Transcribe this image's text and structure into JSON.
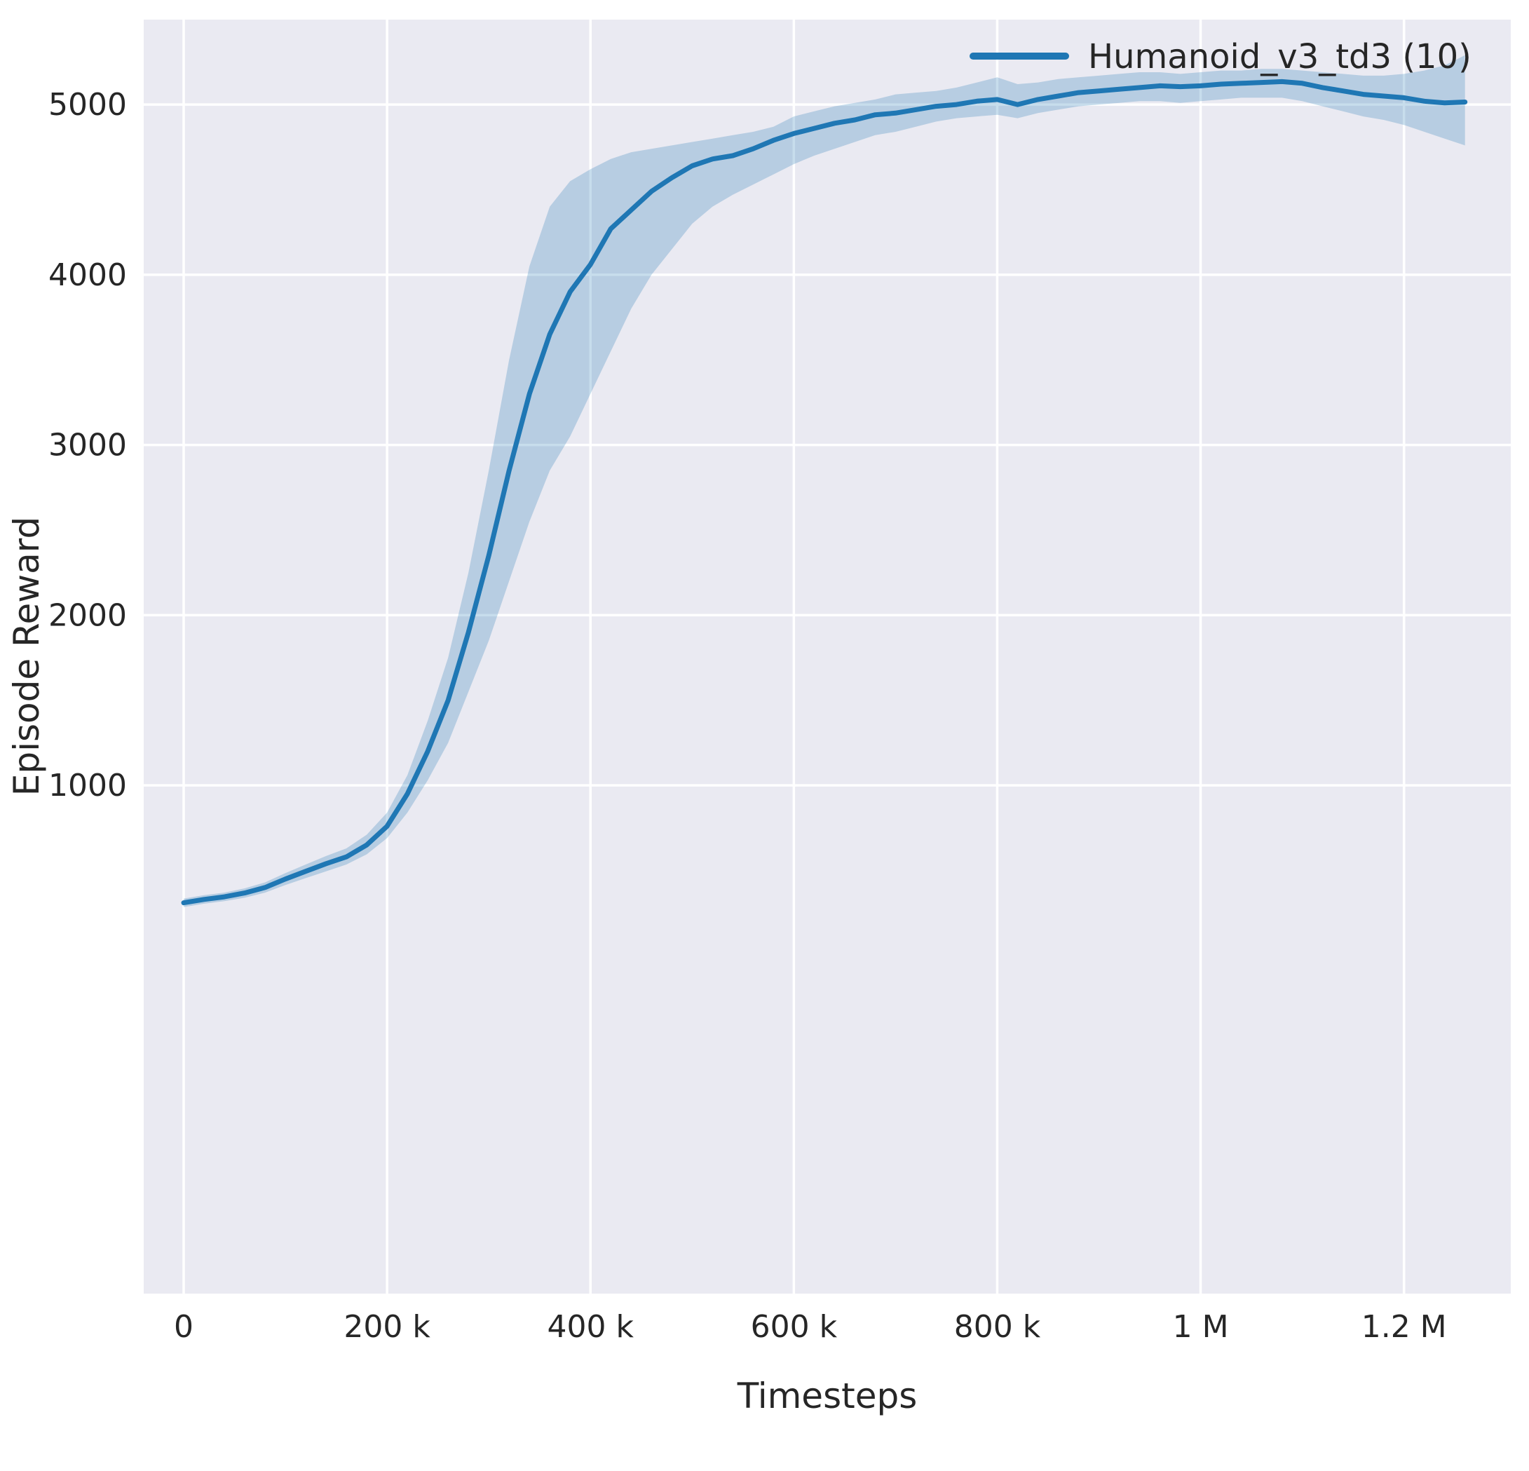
{
  "chart_data": {
    "type": "line",
    "title": "",
    "xlabel": "Timesteps",
    "ylabel": "Episode Reward",
    "legend_position": "upper-right",
    "grid": true,
    "background": "#eaeaf2",
    "grid_color": "#ffffff",
    "text_color": "#262626",
    "xlim": [
      -39300,
      1305000
    ],
    "ylim": [
      -1986,
      5499
    ],
    "x_ticks": [
      {
        "value": 0,
        "label": "0"
      },
      {
        "value": 200000,
        "label": "200 k"
      },
      {
        "value": 400000,
        "label": "400 k"
      },
      {
        "value": 600000,
        "label": "600 k"
      },
      {
        "value": 800000,
        "label": "800 k"
      },
      {
        "value": 1000000,
        "label": "1 M"
      },
      {
        "value": 1200000,
        "label": "1.2 M"
      }
    ],
    "y_ticks": [
      {
        "value": 1000,
        "label": "1000"
      },
      {
        "value": 2000,
        "label": "2000"
      },
      {
        "value": 3000,
        "label": "3000"
      },
      {
        "value": 4000,
        "label": "4000"
      },
      {
        "value": 5000,
        "label": "5000"
      }
    ],
    "series": [
      {
        "name": "Humanoid_v3_td3 (10)",
        "color": "#1f77b4",
        "band_opacity": 0.25,
        "x": [
          0,
          20000,
          40000,
          60000,
          80000,
          100000,
          120000,
          140000,
          160000,
          180000,
          200000,
          220000,
          240000,
          260000,
          280000,
          300000,
          320000,
          340000,
          360000,
          380000,
          400000,
          420000,
          440000,
          460000,
          480000,
          500000,
          520000,
          540000,
          560000,
          580000,
          600000,
          620000,
          640000,
          660000,
          680000,
          700000,
          720000,
          740000,
          760000,
          780000,
          800000,
          820000,
          840000,
          860000,
          880000,
          900000,
          920000,
          940000,
          960000,
          980000,
          1000000,
          1020000,
          1040000,
          1060000,
          1080000,
          1100000,
          1120000,
          1140000,
          1160000,
          1180000,
          1200000,
          1220000,
          1240000,
          1260000
        ],
        "y": [
          310,
          330,
          345,
          368,
          400,
          450,
          495,
          540,
          580,
          650,
          760,
          950,
          1200,
          1500,
          1900,
          2350,
          2850,
          3300,
          3650,
          3900,
          4060,
          4270,
          4380,
          4490,
          4570,
          4640,
          4680,
          4700,
          4740,
          4790,
          4830,
          4860,
          4890,
          4910,
          4940,
          4950,
          4970,
          4990,
          5000,
          5020,
          5030,
          5000,
          5030,
          5050,
          5070,
          5080,
          5090,
          5100,
          5110,
          5105,
          5110,
          5120,
          5125,
          5130,
          5135,
          5125,
          5100,
          5080,
          5060,
          5050,
          5040,
          5020,
          5010,
          5015
        ],
        "y_lower": [
          285,
          305,
          320,
          340,
          370,
          415,
          455,
          495,
          535,
          595,
          690,
          840,
          1030,
          1250,
          1550,
          1850,
          2200,
          2550,
          2850,
          3050,
          3300,
          3550,
          3800,
          4000,
          4150,
          4300,
          4400,
          4470,
          4530,
          4590,
          4650,
          4700,
          4740,
          4780,
          4820,
          4840,
          4870,
          4900,
          4920,
          4930,
          4940,
          4920,
          4950,
          4970,
          4990,
          5000,
          5010,
          5020,
          5020,
          5010,
          5020,
          5030,
          5040,
          5040,
          5040,
          5020,
          4990,
          4960,
          4930,
          4910,
          4880,
          4840,
          4800,
          4760
        ],
        "y_upper": [
          335,
          355,
          370,
          395,
          430,
          485,
          535,
          585,
          630,
          710,
          840,
          1060,
          1380,
          1750,
          2250,
          2850,
          3500,
          4050,
          4400,
          4550,
          4620,
          4680,
          4720,
          4740,
          4760,
          4780,
          4800,
          4820,
          4840,
          4870,
          4930,
          4960,
          4990,
          5010,
          5030,
          5060,
          5070,
          5080,
          5100,
          5130,
          5160,
          5120,
          5130,
          5150,
          5160,
          5170,
          5180,
          5190,
          5190,
          5180,
          5190,
          5200,
          5200,
          5210,
          5210,
          5200,
          5190,
          5180,
          5170,
          5170,
          5180,
          5200,
          5230,
          5290
        ]
      }
    ]
  }
}
